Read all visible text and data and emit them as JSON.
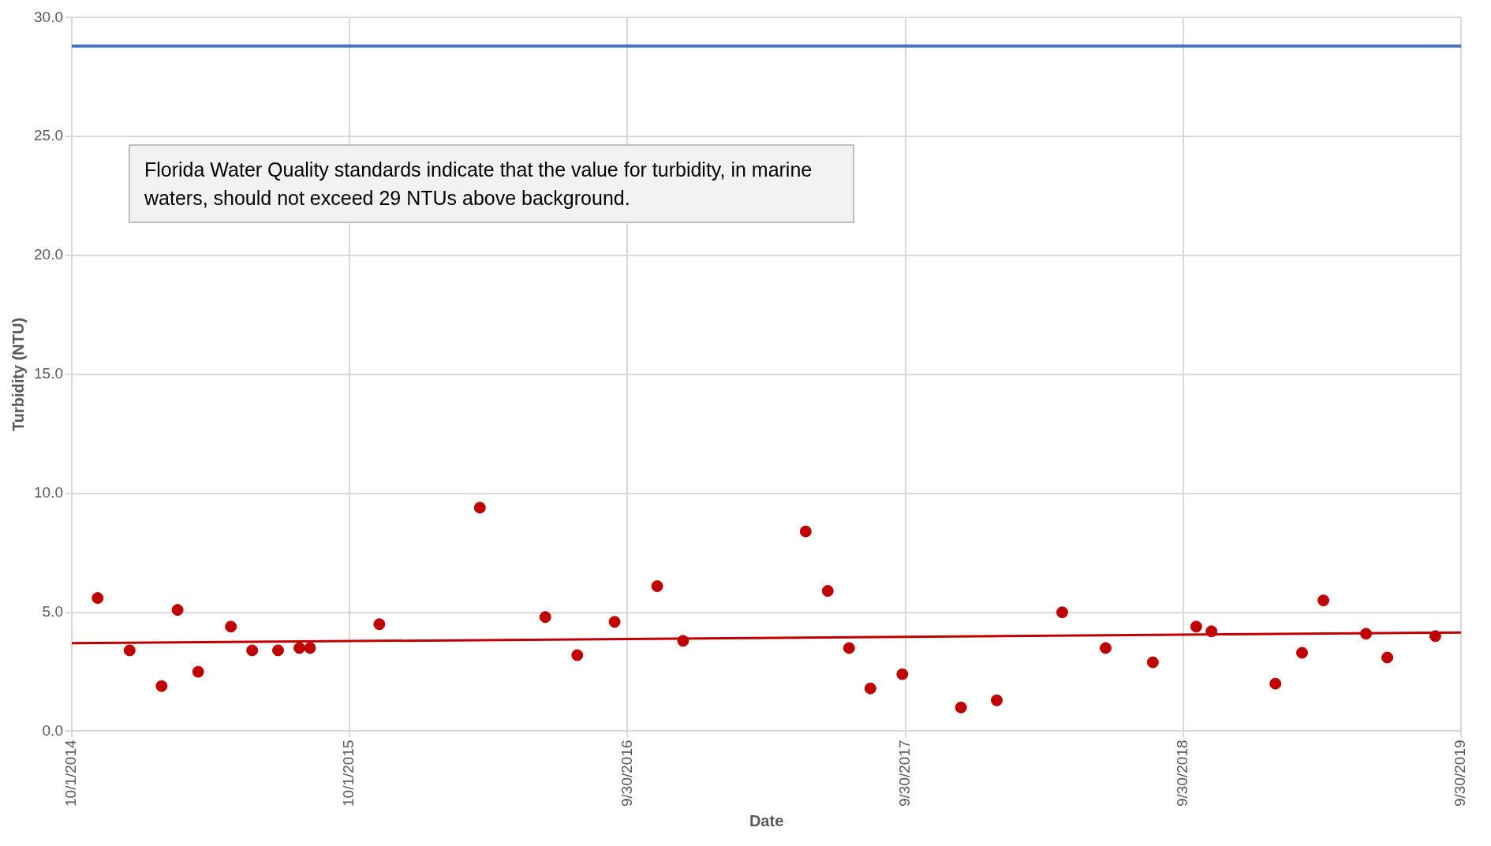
{
  "chart_data": {
    "type": "scatter",
    "xlabel": "Date",
    "ylabel": "Turbidity (NTU)",
    "annotations": [
      "Florida Water Quality standards indicate that the value for turbidity, in marine waters, should not exceed 29 NTUs above background."
    ],
    "xlim": [
      "2014-10-01",
      "2019-09-30"
    ],
    "xticks": [
      {
        "value": "2014-10-01",
        "label": "10/1/2014"
      },
      {
        "value": "2015-10-01",
        "label": "10/1/2015"
      },
      {
        "value": "2016-09-30",
        "label": "9/30/2016"
      },
      {
        "value": "2017-09-30",
        "label": "9/30/2017"
      },
      {
        "value": "2018-09-30",
        "label": "9/30/2018"
      },
      {
        "value": "2019-09-30",
        "label": "9/30/2019"
      }
    ],
    "ylim": [
      0,
      30
    ],
    "yticks": [
      {
        "value": 0,
        "label": "0.0"
      },
      {
        "value": 5,
        "label": "5.0"
      },
      {
        "value": 10,
        "label": "10.0"
      },
      {
        "value": 15,
        "label": "15.0"
      },
      {
        "value": 20,
        "label": "20.0"
      },
      {
        "value": 25,
        "label": "25.0"
      },
      {
        "value": 30,
        "label": "30.0"
      }
    ],
    "grid": true,
    "legend": false,
    "series": [
      {
        "marker": "circle",
        "color": "#c00000",
        "x": [
          "2014-11-04",
          "2014-12-16",
          "2015-01-27",
          "2015-02-17",
          "2015-03-16",
          "2015-04-28",
          "2015-05-26",
          "2015-06-29",
          "2015-07-27",
          "2015-08-10",
          "2015-11-09",
          "2016-03-20",
          "2016-06-14",
          "2016-07-26",
          "2016-09-13",
          "2016-11-08",
          "2016-12-12",
          "2017-05-22",
          "2017-06-20",
          "2017-07-18",
          "2017-08-15",
          "2017-09-26",
          "2017-12-12",
          "2018-01-28",
          "2018-04-24",
          "2018-06-20",
          "2018-08-21",
          "2018-10-17",
          "2018-11-06",
          "2019-01-29",
          "2019-03-05",
          "2019-04-02",
          "2019-05-28",
          "2019-06-25",
          "2019-08-27"
        ],
        "values": [
          5.6,
          3.4,
          1.9,
          5.1,
          2.5,
          4.4,
          3.4,
          3.4,
          3.5,
          3.5,
          4.5,
          9.4,
          4.8,
          3.2,
          4.6,
          6.1,
          3.8,
          8.4,
          5.9,
          3.5,
          1.8,
          2.4,
          1.0,
          1.3,
          5.0,
          3.5,
          2.9,
          4.4,
          4.2,
          2.0,
          3.3,
          5.5,
          4.1,
          3.1,
          4.0
        ]
      },
      {
        "type": "line",
        "color": "#c00000",
        "x": [
          "2014-10-01",
          "2019-09-30"
        ],
        "values": [
          3.7,
          4.15
        ]
      }
    ],
    "ref_lines": [
      {
        "axis": "y",
        "value": 28.8,
        "color": "#4472c4"
      }
    ]
  }
}
